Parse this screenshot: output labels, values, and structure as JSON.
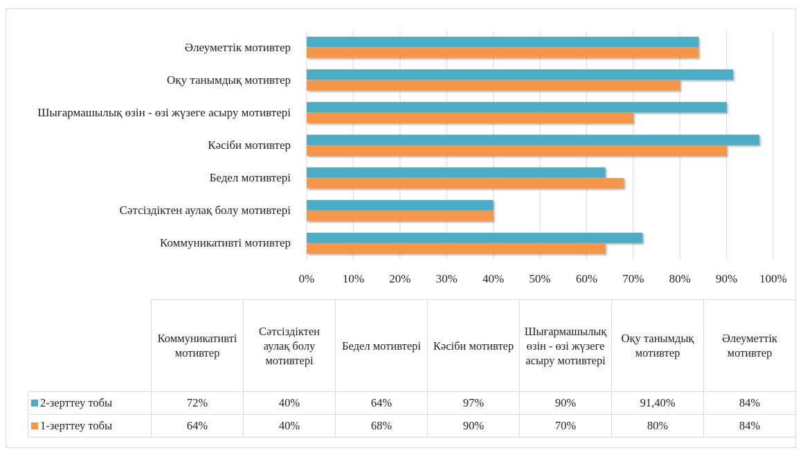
{
  "chart_data": {
    "type": "bar",
    "orientation": "horizontal",
    "categories": [
      "Коммуникативті мотивтер",
      "Сәтсіздіктен аулақ болу мотивтері",
      "Бедел мотивтері",
      "Кәсіби мотивтер",
      "Шығармашылық өзін - өзі жүзеге асыру мотивтері",
      "Оқу танымдық мотивтер",
      "Әлеуметтік мотивтер"
    ],
    "series": [
      {
        "name": "2-зерттеу тобы",
        "color": "#4bacc6",
        "values": [
          72,
          40,
          64,
          97,
          90,
          91.4,
          84
        ],
        "value_labels": [
          "72%",
          "40%",
          "64%",
          "97%",
          "90%",
          "91,40%",
          "84%"
        ]
      },
      {
        "name": "1-зерттеу тобы",
        "color": "#f79646",
        "values": [
          64,
          40,
          68,
          90,
          70,
          80,
          84
        ],
        "value_labels": [
          "64%",
          "40%",
          "68%",
          "90%",
          "70%",
          "80%",
          "84%"
        ]
      }
    ],
    "xlim": [
      0,
      100
    ],
    "xticks": [
      {
        "value": 0,
        "label": "0%"
      },
      {
        "value": 10,
        "label": "10%"
      },
      {
        "value": 20,
        "label": "20%"
      },
      {
        "value": 30,
        "label": "30%"
      },
      {
        "value": 40,
        "label": "40%"
      },
      {
        "value": 50,
        "label": "50%"
      },
      {
        "value": 60,
        "label": "60%"
      },
      {
        "value": 70,
        "label": "70%"
      },
      {
        "value": 80,
        "label": "80%"
      },
      {
        "value": 90,
        "label": "90%"
      },
      {
        "value": 100,
        "label": "100%"
      }
    ],
    "grid": true
  }
}
